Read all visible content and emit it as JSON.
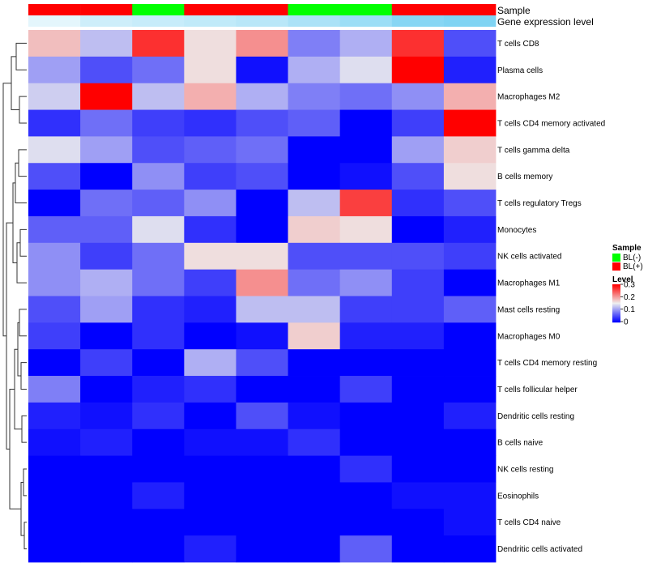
{
  "chart_data": {
    "type": "heatmap",
    "annotations": [
      {
        "name": "Sample",
        "values": [
          "BL(+)",
          "BL(+)",
          "BL(-)",
          "BL(+)",
          "BL(+)",
          "BL(-)",
          "BL(-)",
          "BL(+)",
          "BL(+)"
        ]
      },
      {
        "name": "Gene expression level",
        "values": [
          0.05,
          0.2,
          0.25,
          0.3,
          0.35,
          0.45,
          0.55,
          0.7,
          0.75
        ]
      }
    ],
    "rows": [
      "T cells CD8",
      "Plasma cells",
      "Macrophages M2",
      "T cells CD4 memory activated",
      "T cells gamma delta",
      "B cells memory",
      "T cells regulatory  Tregs",
      "Monocytes",
      "NK cells activated",
      "Macrophages M1",
      "Mast cells resting",
      "Macrophages M0",
      "T cells CD4 memory resting",
      "T cells follicular helper",
      "Dendritic cells resting",
      "B cells naive",
      "NK cells resting",
      "Eosinophils",
      "T cells CD4 naive",
      "Dendritic cells activated"
    ],
    "values": [
      [
        0.18,
        0.12,
        0.27,
        0.16,
        0.21,
        0.08,
        0.11,
        0.27,
        0.05
      ],
      [
        0.1,
        0.05,
        0.07,
        0.16,
        0.01,
        0.11,
        0.14,
        0.3,
        0.02
      ],
      [
        0.13,
        0.3,
        0.12,
        0.19,
        0.11,
        0.08,
        0.07,
        0.09,
        0.19
      ],
      [
        0.03,
        0.07,
        0.04,
        0.03,
        0.05,
        0.06,
        0.0,
        0.04,
        0.3
      ],
      [
        0.14,
        0.1,
        0.05,
        0.06,
        0.07,
        0.0,
        0.0,
        0.1,
        0.17
      ],
      [
        0.05,
        0.0,
        0.09,
        0.04,
        0.05,
        0.0,
        0.01,
        0.05,
        0.16
      ],
      [
        0.0,
        0.07,
        0.06,
        0.09,
        0.0,
        0.12,
        0.26,
        0.03,
        0.05
      ],
      [
        0.06,
        0.06,
        0.14,
        0.03,
        0.0,
        0.17,
        0.16,
        0.0,
        0.02
      ],
      [
        0.09,
        0.04,
        0.07,
        0.16,
        0.16,
        0.05,
        0.05,
        0.05,
        0.04
      ],
      [
        0.09,
        0.11,
        0.07,
        0.04,
        0.21,
        0.07,
        0.09,
        0.04,
        0.0
      ],
      [
        0.05,
        0.1,
        0.03,
        0.02,
        0.12,
        0.12,
        0.04,
        0.04,
        0.06
      ],
      [
        0.04,
        0.0,
        0.03,
        0.0,
        0.01,
        0.17,
        0.02,
        0.02,
        0.0
      ],
      [
        0.0,
        0.04,
        0.0,
        0.11,
        0.05,
        0.0,
        0.0,
        0.0,
        0.0
      ],
      [
        0.08,
        0.0,
        0.02,
        0.03,
        0.0,
        0.0,
        0.04,
        0.0,
        0.0
      ],
      [
        0.02,
        0.01,
        0.03,
        0.0,
        0.05,
        0.01,
        0.0,
        0.0,
        0.02
      ],
      [
        0.01,
        0.02,
        0.0,
        0.01,
        0.01,
        0.03,
        0.0,
        0.0,
        0.0
      ],
      [
        0.0,
        0.0,
        0.0,
        0.0,
        0.0,
        0.0,
        0.03,
        0.0,
        0.0
      ],
      [
        0.0,
        0.0,
        0.02,
        0.0,
        0.0,
        0.0,
        0.0,
        0.01,
        0.01
      ],
      [
        0.0,
        0.0,
        0.0,
        0.0,
        0.0,
        0.0,
        0.0,
        0.0,
        0.01
      ],
      [
        0.0,
        0.0,
        0.0,
        0.02,
        0.0,
        0.0,
        0.06,
        0.0,
        0.0
      ]
    ],
    "color_scale": {
      "min": 0,
      "mid": 0.15,
      "max": 0.3,
      "low": "#0000ff",
      "mid_color": "#eeeeee",
      "high": "#ff0000"
    },
    "legend": {
      "sample_title": "Sample",
      "sample_items": [
        {
          "label": "BL(-)",
          "color": "#00ff00"
        },
        {
          "label": "BL(+)",
          "color": "#ff0000"
        }
      ],
      "level_title": "Level",
      "level_ticks": [
        "0.3",
        "0.2",
        "0.1",
        "0"
      ],
      "placement": "right"
    }
  }
}
